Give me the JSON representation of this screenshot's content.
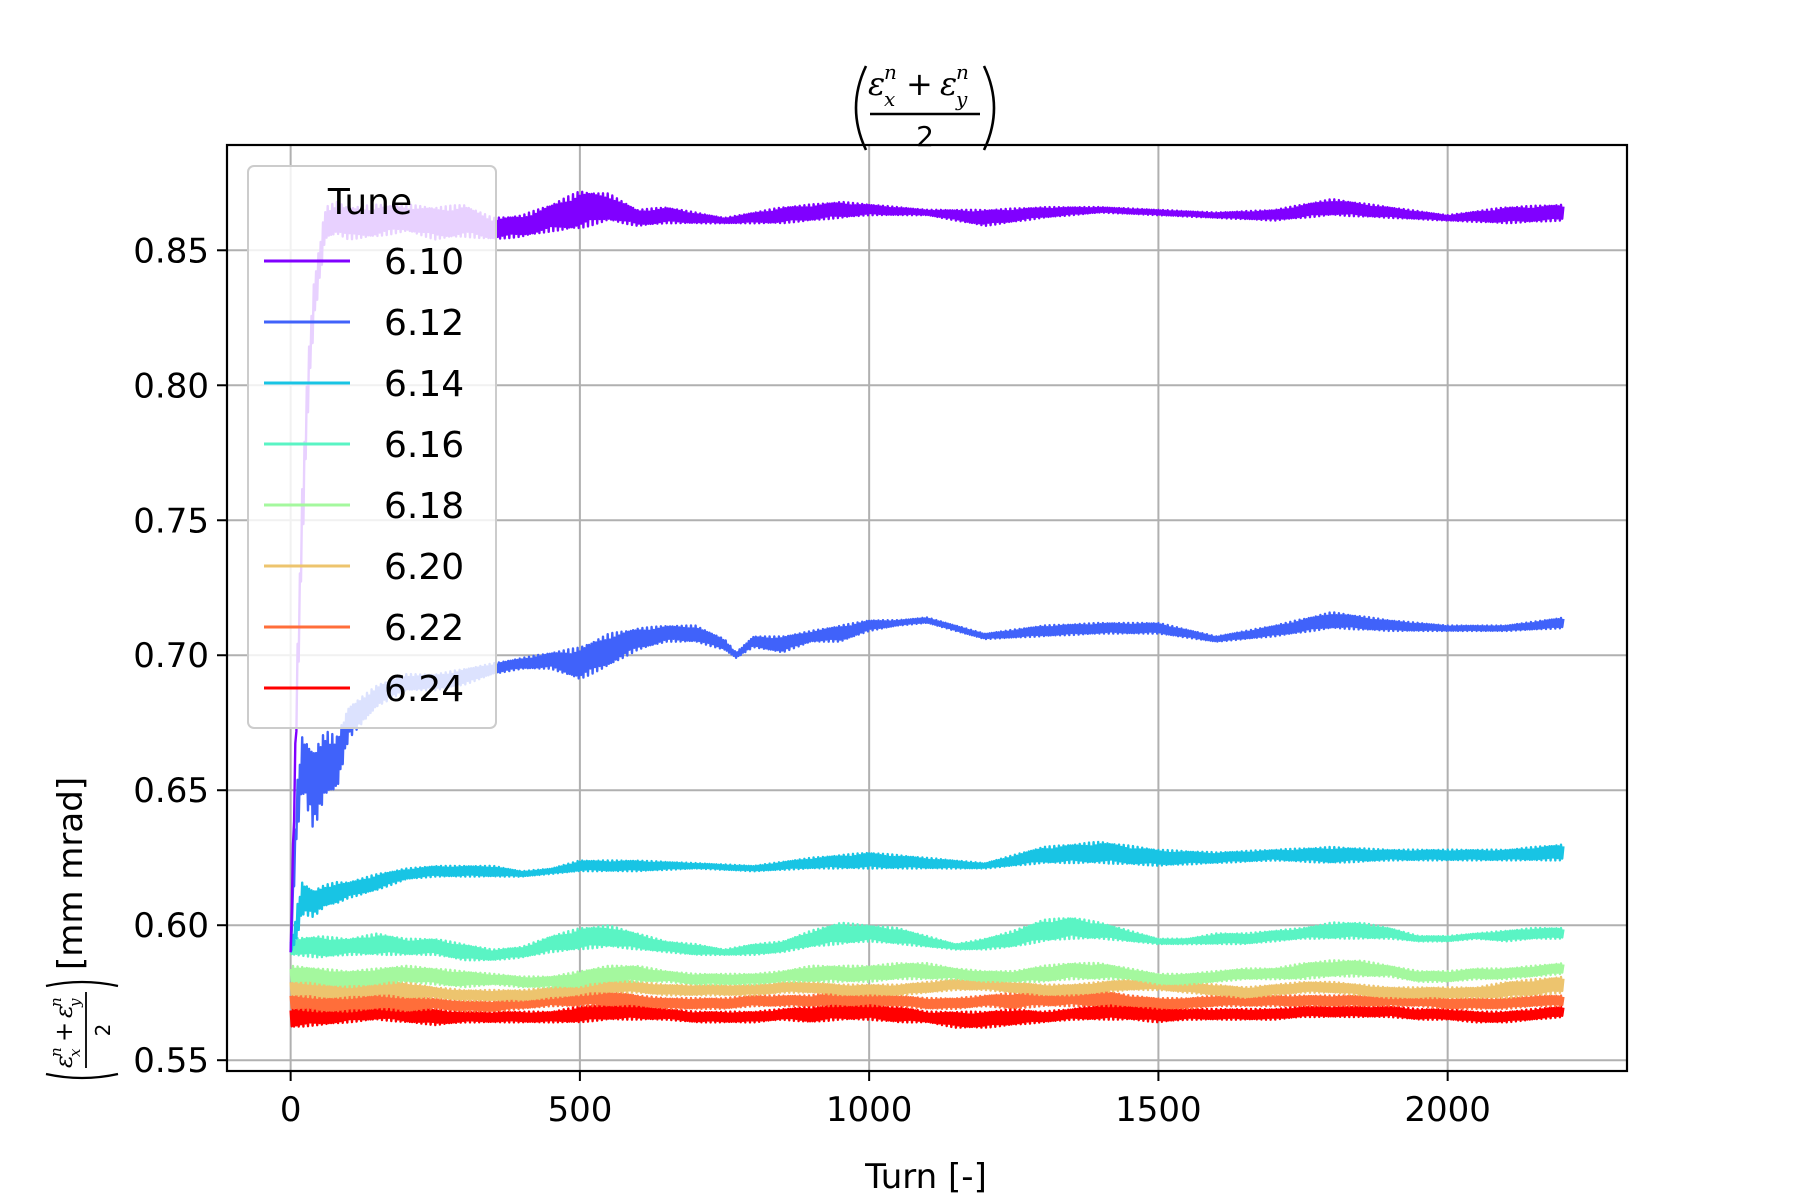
{
  "chart_data": {
    "type": "line",
    "title": {
      "numer_main": "ε",
      "sub_x": "x",
      "sub_y": "y",
      "sup": "n",
      "plus": "+",
      "denom": "2"
    },
    "xlabel": "Turn [-]",
    "ylabel_suffix": "[mm mrad]",
    "xlim": [
      -110,
      2310
    ],
    "ylim": [
      0.546,
      0.889
    ],
    "xticks": [
      0,
      500,
      1000,
      1500,
      2000
    ],
    "xtick_labels": [
      "0",
      "500",
      "1000",
      "1500",
      "2000"
    ],
    "yticks": [
      0.55,
      0.6,
      0.65,
      0.7,
      0.75,
      0.8,
      0.85
    ],
    "ytick_labels": [
      "0.55",
      "0.60",
      "0.65",
      "0.70",
      "0.75",
      "0.80",
      "0.85"
    ],
    "grid": true,
    "legend": {
      "title": "Tune",
      "placement": "upper-left"
    },
    "series": [
      {
        "name": "6.10",
        "color": "#8000ff",
        "x": [
          0,
          10,
          20,
          30,
          40,
          60,
          80,
          100,
          150,
          200,
          250,
          300,
          350,
          400,
          450,
          500,
          550,
          600,
          650,
          700,
          750,
          800,
          850,
          900,
          950,
          1000,
          1100,
          1200,
          1300,
          1400,
          1500,
          1600,
          1700,
          1800,
          1900,
          2000,
          2100,
          2200
        ],
        "y": [
          0.59,
          0.68,
          0.75,
          0.8,
          0.83,
          0.86,
          0.862,
          0.86,
          0.861,
          0.862,
          0.86,
          0.861,
          0.858,
          0.859,
          0.862,
          0.865,
          0.866,
          0.862,
          0.863,
          0.862,
          0.861,
          0.862,
          0.863,
          0.864,
          0.865,
          0.865,
          0.864,
          0.862,
          0.864,
          0.865,
          0.864,
          0.863,
          0.863,
          0.866,
          0.864,
          0.862,
          0.863,
          0.864
        ],
        "band": [
          0.0,
          0.01,
          0.012,
          0.01,
          0.008,
          0.006,
          0.006,
          0.006,
          0.006,
          0.005,
          0.006,
          0.006,
          0.004,
          0.004,
          0.005,
          0.007,
          0.005,
          0.003,
          0.003,
          0.002,
          0.001,
          0.002,
          0.003,
          0.003,
          0.003,
          0.002,
          0.001,
          0.003,
          0.002,
          0.001,
          0.001,
          0.001,
          0.002,
          0.003,
          0.002,
          0.001,
          0.003,
          0.003
        ]
      },
      {
        "name": "6.12",
        "color": "#4062fa",
        "x": [
          0,
          10,
          20,
          40,
          60,
          80,
          100,
          150,
          200,
          250,
          300,
          350,
          400,
          450,
          500,
          550,
          600,
          650,
          700,
          750,
          770,
          800,
          850,
          900,
          950,
          1000,
          1050,
          1100,
          1200,
          1300,
          1400,
          1500,
          1600,
          1700,
          1800,
          1900,
          2000,
          2100,
          2200
        ],
        "y": [
          0.59,
          0.64,
          0.66,
          0.65,
          0.66,
          0.66,
          0.675,
          0.685,
          0.69,
          0.69,
          0.692,
          0.695,
          0.697,
          0.698,
          0.697,
          0.702,
          0.706,
          0.708,
          0.708,
          0.704,
          0.7,
          0.705,
          0.704,
          0.707,
          0.708,
          0.711,
          0.712,
          0.713,
          0.707,
          0.709,
          0.71,
          0.71,
          0.706,
          0.709,
          0.713,
          0.711,
          0.71,
          0.71,
          0.712
        ],
        "band": [
          0.0,
          0.01,
          0.01,
          0.015,
          0.012,
          0.01,
          0.006,
          0.004,
          0.003,
          0.003,
          0.003,
          0.002,
          0.002,
          0.003,
          0.006,
          0.006,
          0.004,
          0.003,
          0.003,
          0.002,
          0.001,
          0.002,
          0.003,
          0.002,
          0.003,
          0.002,
          0.001,
          0.001,
          0.001,
          0.002,
          0.002,
          0.002,
          0.001,
          0.002,
          0.003,
          0.002,
          0.001,
          0.001,
          0.002
        ]
      },
      {
        "name": "6.14",
        "color": "#18c4e4",
        "x": [
          0,
          10,
          20,
          40,
          60,
          80,
          100,
          150,
          200,
          250,
          300,
          350,
          400,
          450,
          500,
          600,
          700,
          800,
          900,
          1000,
          1100,
          1200,
          1300,
          1400,
          1500,
          1600,
          1700,
          1800,
          1900,
          2000,
          2100,
          2200
        ],
        "y": [
          0.59,
          0.6,
          0.61,
          0.608,
          0.611,
          0.612,
          0.613,
          0.616,
          0.619,
          0.62,
          0.62,
          0.62,
          0.619,
          0.62,
          0.622,
          0.622,
          0.622,
          0.621,
          0.623,
          0.624,
          0.623,
          0.622,
          0.626,
          0.627,
          0.625,
          0.625,
          0.626,
          0.626,
          0.626,
          0.626,
          0.626,
          0.627
        ],
        "band": [
          0.0,
          0.006,
          0.006,
          0.005,
          0.004,
          0.004,
          0.003,
          0.003,
          0.002,
          0.002,
          0.002,
          0.002,
          0.001,
          0.001,
          0.002,
          0.002,
          0.001,
          0.001,
          0.002,
          0.003,
          0.002,
          0.001,
          0.003,
          0.004,
          0.003,
          0.002,
          0.002,
          0.003,
          0.002,
          0.002,
          0.002,
          0.003
        ]
      },
      {
        "name": "6.16",
        "color": "#5af4c4",
        "x": [
          0,
          50,
          100,
          150,
          200,
          250,
          300,
          350,
          400,
          450,
          500,
          550,
          600,
          650,
          700,
          750,
          800,
          850,
          900,
          950,
          1000,
          1050,
          1100,
          1150,
          1200,
          1250,
          1300,
          1350,
          1400,
          1450,
          1500,
          1550,
          1600,
          1650,
          1700,
          1750,
          1800,
          1850,
          1900,
          1950,
          2000,
          2050,
          2100,
          2150,
          2200
        ],
        "y": [
          0.592,
          0.592,
          0.592,
          0.593,
          0.592,
          0.592,
          0.59,
          0.589,
          0.59,
          0.593,
          0.595,
          0.596,
          0.594,
          0.592,
          0.591,
          0.59,
          0.591,
          0.592,
          0.595,
          0.597,
          0.597,
          0.596,
          0.594,
          0.592,
          0.593,
          0.595,
          0.598,
          0.599,
          0.598,
          0.596,
          0.594,
          0.594,
          0.595,
          0.595,
          0.596,
          0.597,
          0.598,
          0.598,
          0.597,
          0.595,
          0.595,
          0.596,
          0.596,
          0.597,
          0.597
        ],
        "band": [
          0.003,
          0.004,
          0.003,
          0.004,
          0.003,
          0.003,
          0.003,
          0.002,
          0.002,
          0.003,
          0.004,
          0.004,
          0.003,
          0.002,
          0.002,
          0.001,
          0.002,
          0.002,
          0.003,
          0.004,
          0.003,
          0.003,
          0.002,
          0.001,
          0.002,
          0.003,
          0.004,
          0.004,
          0.003,
          0.002,
          0.001,
          0.001,
          0.002,
          0.002,
          0.002,
          0.002,
          0.003,
          0.003,
          0.002,
          0.001,
          0.001,
          0.001,
          0.002,
          0.002,
          0.002
        ]
      },
      {
        "name": "6.18",
        "color": "#a4f89e",
        "x": [
          0,
          50,
          100,
          150,
          200,
          250,
          300,
          350,
          400,
          450,
          500,
          550,
          600,
          650,
          700,
          750,
          800,
          850,
          900,
          950,
          1000,
          1050,
          1100,
          1150,
          1200,
          1250,
          1300,
          1350,
          1400,
          1450,
          1500,
          1550,
          1600,
          1650,
          1700,
          1750,
          1800,
          1850,
          1900,
          1950,
          2000,
          2050,
          2100,
          2150,
          2200
        ],
        "y": [
          0.582,
          0.581,
          0.58,
          0.581,
          0.582,
          0.581,
          0.58,
          0.58,
          0.579,
          0.579,
          0.58,
          0.582,
          0.582,
          0.581,
          0.58,
          0.58,
          0.58,
          0.581,
          0.582,
          0.582,
          0.582,
          0.583,
          0.583,
          0.582,
          0.581,
          0.581,
          0.582,
          0.583,
          0.583,
          0.582,
          0.58,
          0.58,
          0.581,
          0.582,
          0.582,
          0.583,
          0.584,
          0.584,
          0.583,
          0.581,
          0.581,
          0.582,
          0.582,
          0.583,
          0.584
        ],
        "band": [
          0.003,
          0.003,
          0.003,
          0.003,
          0.003,
          0.003,
          0.003,
          0.002,
          0.002,
          0.002,
          0.003,
          0.003,
          0.003,
          0.002,
          0.002,
          0.002,
          0.002,
          0.002,
          0.003,
          0.003,
          0.003,
          0.003,
          0.003,
          0.002,
          0.002,
          0.002,
          0.003,
          0.003,
          0.003,
          0.002,
          0.002,
          0.002,
          0.002,
          0.002,
          0.002,
          0.003,
          0.003,
          0.003,
          0.002,
          0.002,
          0.002,
          0.002,
          0.002,
          0.002,
          0.002
        ]
      },
      {
        "name": "6.20",
        "color": "#edc46e",
        "x": [
          0,
          50,
          100,
          150,
          200,
          250,
          300,
          350,
          400,
          450,
          500,
          550,
          600,
          650,
          700,
          750,
          800,
          850,
          900,
          950,
          1000,
          1050,
          1100,
          1150,
          1200,
          1250,
          1300,
          1350,
          1400,
          1450,
          1500,
          1550,
          1600,
          1650,
          1700,
          1750,
          1800,
          1850,
          1900,
          1950,
          2000,
          2050,
          2100,
          2150,
          2200
        ],
        "y": [
          0.577,
          0.576,
          0.576,
          0.577,
          0.576,
          0.575,
          0.574,
          0.574,
          0.574,
          0.575,
          0.577,
          0.578,
          0.577,
          0.576,
          0.576,
          0.576,
          0.576,
          0.577,
          0.577,
          0.576,
          0.576,
          0.576,
          0.577,
          0.578,
          0.578,
          0.577,
          0.576,
          0.576,
          0.577,
          0.578,
          0.578,
          0.577,
          0.576,
          0.575,
          0.576,
          0.577,
          0.577,
          0.576,
          0.575,
          0.575,
          0.575,
          0.575,
          0.576,
          0.577,
          0.578
        ],
        "band": [
          0.003,
          0.003,
          0.003,
          0.003,
          0.003,
          0.002,
          0.002,
          0.002,
          0.002,
          0.002,
          0.003,
          0.003,
          0.002,
          0.002,
          0.002,
          0.002,
          0.002,
          0.002,
          0.002,
          0.002,
          0.002,
          0.002,
          0.002,
          0.002,
          0.002,
          0.002,
          0.002,
          0.002,
          0.002,
          0.002,
          0.002,
          0.002,
          0.002,
          0.002,
          0.002,
          0.002,
          0.002,
          0.002,
          0.002,
          0.002,
          0.002,
          0.002,
          0.003,
          0.003,
          0.003
        ]
      },
      {
        "name": "6.22",
        "color": "#ff6e3a",
        "x": [
          0,
          50,
          100,
          150,
          200,
          250,
          300,
          350,
          400,
          450,
          500,
          550,
          600,
          650,
          700,
          750,
          800,
          850,
          900,
          950,
          1000,
          1050,
          1100,
          1150,
          1200,
          1250,
          1300,
          1350,
          1400,
          1450,
          1500,
          1550,
          1600,
          1650,
          1700,
          1750,
          1800,
          1850,
          1900,
          1950,
          2000,
          2050,
          2100,
          2150,
          2200
        ],
        "y": [
          0.572,
          0.571,
          0.571,
          0.572,
          0.571,
          0.571,
          0.57,
          0.57,
          0.571,
          0.572,
          0.573,
          0.573,
          0.572,
          0.571,
          0.571,
          0.571,
          0.572,
          0.572,
          0.572,
          0.573,
          0.573,
          0.572,
          0.571,
          0.571,
          0.572,
          0.572,
          0.573,
          0.573,
          0.573,
          0.572,
          0.571,
          0.571,
          0.572,
          0.572,
          0.572,
          0.572,
          0.572,
          0.572,
          0.572,
          0.572,
          0.571,
          0.571,
          0.571,
          0.572,
          0.572
        ],
        "band": [
          0.003,
          0.003,
          0.003,
          0.003,
          0.003,
          0.002,
          0.002,
          0.002,
          0.002,
          0.002,
          0.003,
          0.003,
          0.002,
          0.002,
          0.002,
          0.002,
          0.002,
          0.002,
          0.002,
          0.003,
          0.003,
          0.002,
          0.002,
          0.002,
          0.002,
          0.003,
          0.003,
          0.003,
          0.003,
          0.002,
          0.002,
          0.002,
          0.002,
          0.002,
          0.002,
          0.002,
          0.002,
          0.002,
          0.002,
          0.002,
          0.002,
          0.002,
          0.002,
          0.002,
          0.002
        ]
      },
      {
        "name": "6.24",
        "color": "#ff0000",
        "x": [
          0,
          50,
          100,
          150,
          200,
          250,
          300,
          350,
          400,
          450,
          500,
          550,
          600,
          650,
          700,
          750,
          800,
          850,
          900,
          950,
          1000,
          1050,
          1100,
          1150,
          1200,
          1250,
          1300,
          1350,
          1400,
          1450,
          1500,
          1550,
          1600,
          1650,
          1700,
          1750,
          1800,
          1850,
          1900,
          1950,
          2000,
          2050,
          2100,
          2150,
          2200
        ],
        "y": [
          0.566,
          0.566,
          0.567,
          0.568,
          0.567,
          0.566,
          0.566,
          0.566,
          0.566,
          0.566,
          0.567,
          0.568,
          0.568,
          0.567,
          0.566,
          0.566,
          0.566,
          0.567,
          0.567,
          0.568,
          0.568,
          0.567,
          0.566,
          0.565,
          0.565,
          0.566,
          0.566,
          0.567,
          0.568,
          0.568,
          0.567,
          0.567,
          0.567,
          0.567,
          0.567,
          0.568,
          0.568,
          0.568,
          0.568,
          0.567,
          0.567,
          0.566,
          0.566,
          0.567,
          0.568
        ],
        "band": [
          0.004,
          0.003,
          0.003,
          0.003,
          0.003,
          0.003,
          0.002,
          0.002,
          0.002,
          0.002,
          0.003,
          0.003,
          0.003,
          0.002,
          0.002,
          0.002,
          0.002,
          0.002,
          0.003,
          0.003,
          0.003,
          0.003,
          0.002,
          0.003,
          0.003,
          0.003,
          0.002,
          0.002,
          0.003,
          0.003,
          0.003,
          0.002,
          0.002,
          0.002,
          0.002,
          0.002,
          0.002,
          0.002,
          0.002,
          0.002,
          0.002,
          0.002,
          0.002,
          0.002,
          0.002
        ]
      }
    ]
  }
}
